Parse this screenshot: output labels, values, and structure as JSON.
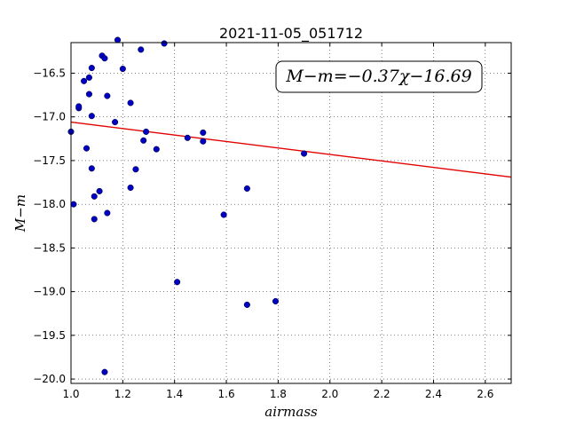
{
  "chart_data": {
    "type": "scatter",
    "title": "2021-11-05_051712",
    "xlabel": "airmass",
    "ylabel": "M−m",
    "xlim": [
      1.0,
      2.7
    ],
    "ylim": [
      -20.05,
      -16.15
    ],
    "y_inverted": false,
    "x_ticks": [
      1.0,
      1.2,
      1.4,
      1.6,
      1.8,
      2.0,
      2.2,
      2.4,
      2.6
    ],
    "x_tick_labels": [
      "1.0",
      "1.2",
      "1.4",
      "1.6",
      "1.8",
      "2.0",
      "2.2",
      "2.4",
      "2.6"
    ],
    "y_ticks": [
      -16.5,
      -17.0,
      -17.5,
      -18.0,
      -18.5,
      -19.0,
      -19.5,
      -20.0
    ],
    "y_tick_labels": [
      "−16.5",
      "−17.0",
      "−17.5",
      "−18.0",
      "−18.5",
      "−19.0",
      "−19.5",
      "−20.0"
    ],
    "grid": true,
    "grid_style": "dotted",
    "annotation": "M−m=−0.37χ−16.69",
    "fit_line": {
      "slope": -0.37,
      "intercept": -16.69,
      "color": "#e00000"
    },
    "marker_color": "#0000c0",
    "points": [
      [
        1.0,
        -17.17
      ],
      [
        1.01,
        -18.0
      ],
      [
        1.03,
        -16.9
      ],
      [
        1.03,
        -16.88
      ],
      [
        1.05,
        -16.59
      ],
      [
        1.06,
        -17.36
      ],
      [
        1.07,
        -16.74
      ],
      [
        1.07,
        -16.55
      ],
      [
        1.08,
        -16.44
      ],
      [
        1.08,
        -16.99
      ],
      [
        1.08,
        -17.59
      ],
      [
        1.09,
        -18.17
      ],
      [
        1.09,
        -17.91
      ],
      [
        1.11,
        -17.85
      ],
      [
        1.12,
        -16.3
      ],
      [
        1.13,
        -16.33
      ],
      [
        1.13,
        -19.92
      ],
      [
        1.14,
        -16.76
      ],
      [
        1.14,
        -18.1
      ],
      [
        1.17,
        -17.06
      ],
      [
        1.18,
        -16.12
      ],
      [
        1.2,
        -16.45
      ],
      [
        1.23,
        -16.84
      ],
      [
        1.23,
        -17.81
      ],
      [
        1.25,
        -17.6
      ],
      [
        1.27,
        -16.23
      ],
      [
        1.28,
        -17.27
      ],
      [
        1.29,
        -17.17
      ],
      [
        1.33,
        -17.37
      ],
      [
        1.36,
        -16.16
      ],
      [
        1.41,
        -18.89
      ],
      [
        1.45,
        -17.24
      ],
      [
        1.51,
        -17.18
      ],
      [
        1.51,
        -17.28
      ],
      [
        1.59,
        -18.12
      ],
      [
        1.68,
        -19.15
      ],
      [
        1.68,
        -17.82
      ],
      [
        1.79,
        -19.11
      ],
      [
        1.9,
        -17.42
      ]
    ]
  }
}
